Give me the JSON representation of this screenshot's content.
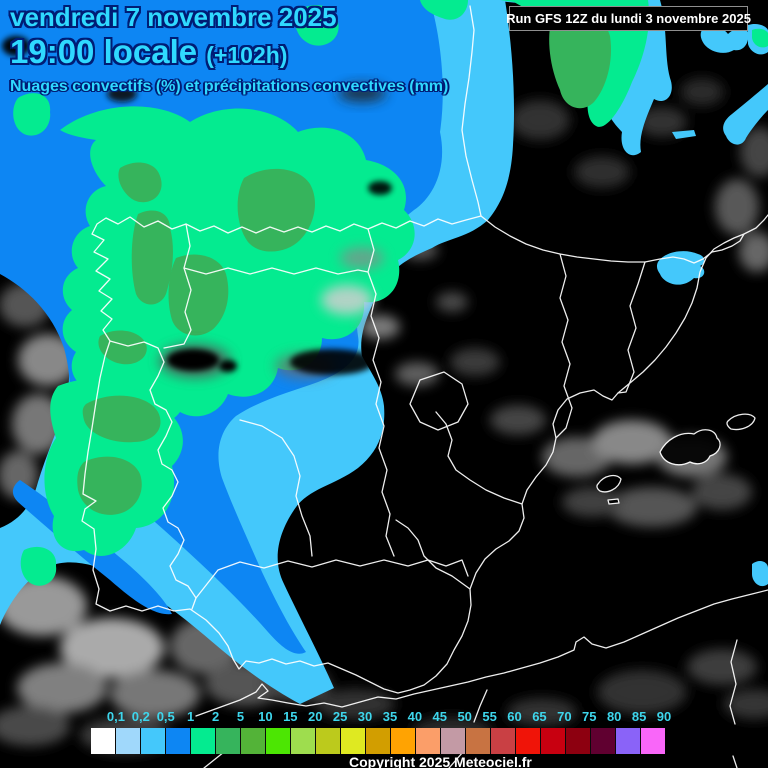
{
  "header": {
    "date_line": "vendredi 7 novembre 2025",
    "time_line": "19:00 locale",
    "time_offset": "(+102h)",
    "subtitle": "Nuages convectifs (%) et précipitations convectives (mm)",
    "text_color": "#2fd9ff",
    "outline_color": "#001d75"
  },
  "run_box": {
    "label": "Run GFS 12Z du lundi 3 novembre 2025"
  },
  "legend": {
    "tick_labels": [
      "0,1",
      "0,2",
      "0,5",
      "1",
      "2",
      "5",
      "10",
      "15",
      "20",
      "25",
      "30",
      "35",
      "40",
      "45",
      "50",
      "55",
      "60",
      "65",
      "70",
      "75",
      "80",
      "85",
      "90"
    ],
    "swatch_colors": [
      "#ffffff",
      "#a0d8fb",
      "#44c8fb",
      "#0d86f3",
      "#04eb90",
      "#36b45c",
      "#53b338",
      "#4ce603",
      "#9edd4e",
      "#bcca1c",
      "#dfe921",
      "#d29e00",
      "#ffa302",
      "#fb9e69",
      "#c39aa5",
      "#c87342",
      "#c94044",
      "#f01408",
      "#c80010",
      "#8d0010",
      "#600030",
      "#8a63f8",
      "#f966f9"
    ],
    "label_color": "#3ed6ec"
  },
  "footer": {
    "copyright": "Copyright 2025 Meteociel.fr"
  },
  "map": {
    "background": "#000000",
    "coastline_color": "#ffffff",
    "precip_levels": {
      "cyan_0_5mm": "#44c8fb",
      "blue_1mm": "#0d86f3",
      "green_2mm": "#04eb90",
      "dark_green_5mm": "#36b45c"
    },
    "cloud_shading": "grayscale"
  }
}
